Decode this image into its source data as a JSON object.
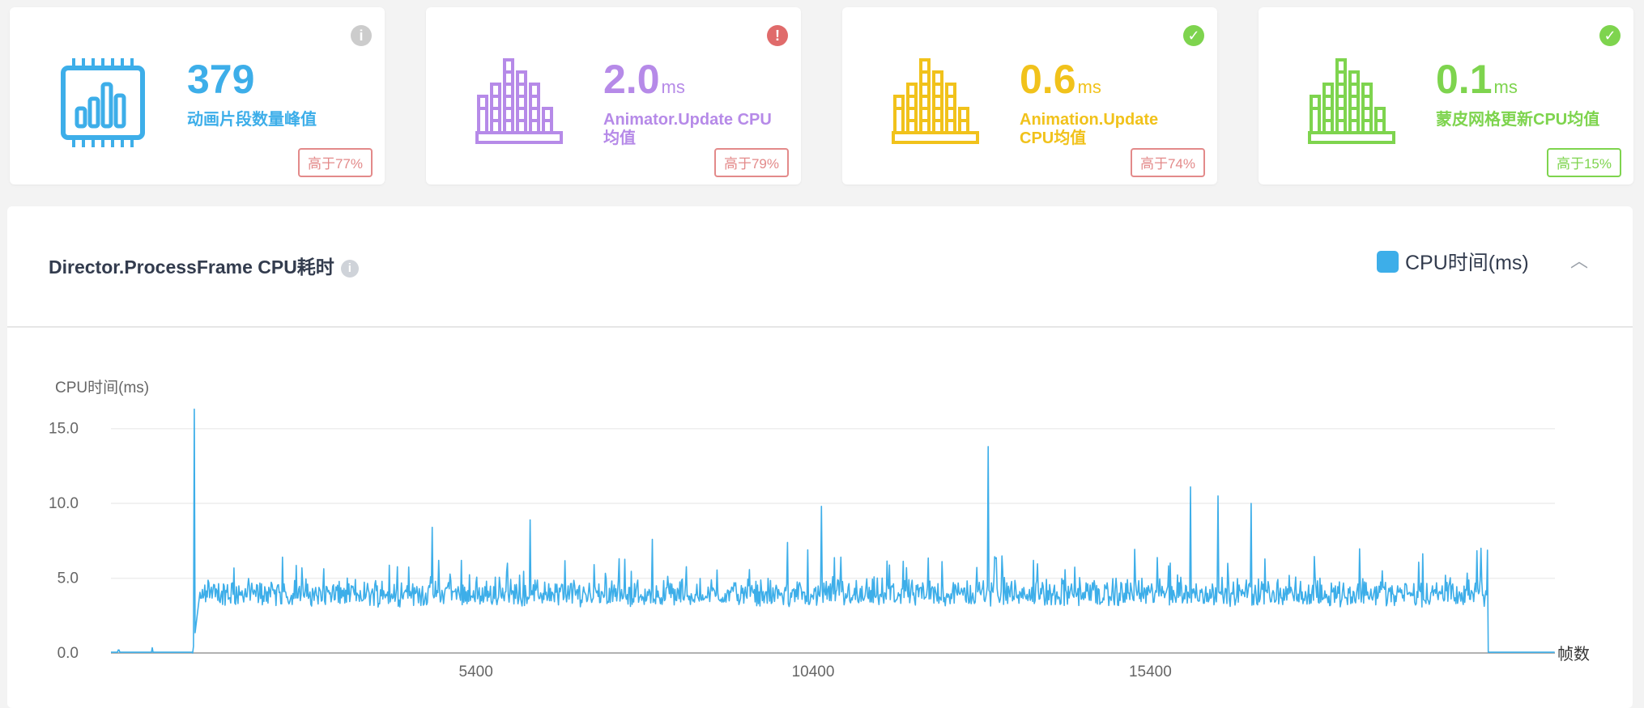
{
  "cards": [
    {
      "value": "379",
      "unit": "",
      "label": "动画片段数量峰值",
      "badge": "高于77%",
      "color": "#3daee9",
      "status": "info",
      "status_color": "#cccccc",
      "badge_color": "#e38a8a"
    },
    {
      "value": "2.0",
      "unit": "ms",
      "label": "Animator.Update CPU均值",
      "badge": "高于79%",
      "color": "#b68ae8",
      "status": "error",
      "status_color": "#e06b6b",
      "badge_color": "#e38a8a"
    },
    {
      "value": "0.6",
      "unit": "ms",
      "label": "Animation.Update CPU均值",
      "badge": "高于74%",
      "color": "#f1c21b",
      "status": "ok",
      "status_color": "#7ed44e",
      "badge_color": "#e38a8a"
    },
    {
      "value": "0.1",
      "unit": "ms",
      "label": "蒙皮网格更新CPU均值",
      "badge": "高于15%",
      "color": "#7ed44e",
      "status": "ok",
      "status_color": "#7ed44e",
      "badge_color": "#7ed44e"
    }
  ],
  "panel": {
    "title": "Director.ProcessFrame CPU耗时",
    "legend": "CPU时间(ms)",
    "collapse_icon": "chevron-up-icon"
  },
  "chart_data": {
    "type": "line",
    "ylabel": "CPU时间(ms)",
    "xlabel": "帧数",
    "xlim": [
      -12,
      21400
    ],
    "ylim": [
      0,
      16.5
    ],
    "yticks": [
      0.0,
      5.0,
      10.0,
      15.0
    ],
    "ytick_labels": [
      "0.0",
      "5.0",
      "10.0",
      "15.0"
    ],
    "xticks": [
      5400,
      10400,
      15400
    ],
    "xtick_labels": [
      "5400",
      "10400",
      "15400"
    ],
    "grid": true,
    "legend_position": "top-right",
    "series": [
      {
        "name": "CPU时间(ms)",
        "color": "#3daee9",
        "active_range": [
          1200,
          20400
        ],
        "baseline_before": 0.05,
        "small_blips": [
          [
            100,
            0.2
          ],
          [
            600,
            0.35
          ]
        ],
        "spikes": [
          [
            1220,
            16.3
          ],
          [
            4750,
            8.4
          ],
          [
            6200,
            8.9
          ],
          [
            10524,
            9.8
          ],
          [
            13000,
            13.8
          ],
          [
            16000,
            11.1
          ],
          [
            16400,
            10.5
          ],
          [
            16900,
            10.0
          ],
          [
            20300,
            7.0
          ]
        ],
        "typical_mean": 3.5,
        "typical_range": [
          2.5,
          5.2
        ]
      }
    ]
  }
}
